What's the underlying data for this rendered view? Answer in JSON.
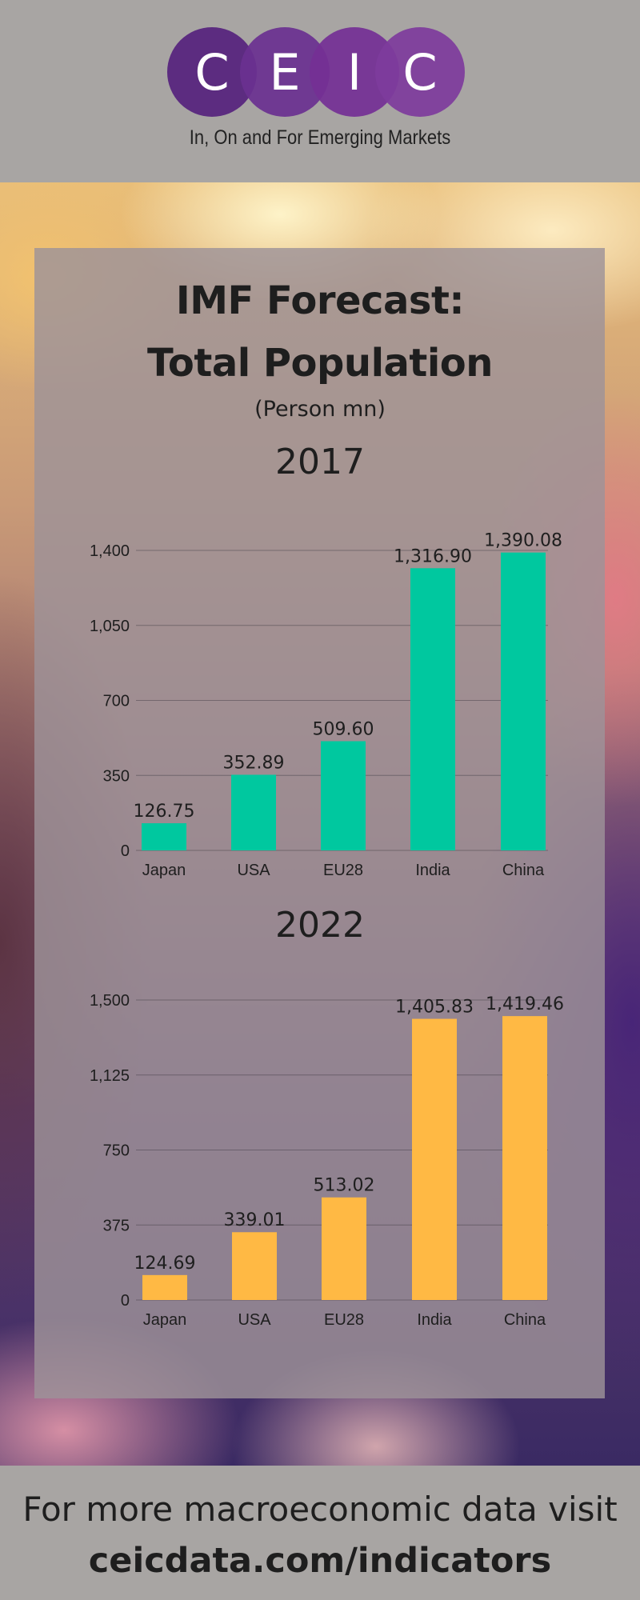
{
  "header": {
    "logo_letters": [
      "C",
      "E",
      "I",
      "C"
    ],
    "logo_colors": [
      "#5c2c80",
      "#6a3090",
      "#742f95",
      "#7e3b9c"
    ],
    "tagline": "In, On and For Emerging Markets"
  },
  "title_line1": "IMF Forecast:",
  "title_line2": "Total Population",
  "subtitle": "(Person mn)",
  "chart_data": [
    {
      "type": "bar",
      "title": "2017",
      "categories": [
        "Japan",
        "USA",
        "EU28",
        "India",
        "China"
      ],
      "values": [
        126.75,
        352.89,
        509.6,
        1316.9,
        1390.08
      ],
      "value_labels": [
        "126.75",
        "352.89",
        "509.60",
        "1,316.90",
        "1,390.08"
      ],
      "ylim": [
        0,
        1400
      ],
      "yticks": [
        0,
        350,
        700,
        1050,
        1400
      ],
      "ytick_labels": [
        "0",
        "350",
        "700",
        "1,050",
        "1,400"
      ],
      "color": "#00c89f",
      "grid": true
    },
    {
      "type": "bar",
      "title": "2022",
      "categories": [
        "Japan",
        "USA",
        "EU28",
        "India",
        "China"
      ],
      "values": [
        124.69,
        339.01,
        513.02,
        1405.83,
        1419.46
      ],
      "value_labels": [
        "124.69",
        "339.01",
        "513.02",
        "1,405.83",
        "1,419.46"
      ],
      "ylim": [
        0,
        1500
      ],
      "yticks": [
        0,
        375,
        750,
        1125,
        1500
      ],
      "ytick_labels": [
        "0",
        "375",
        "750",
        "1,125",
        "1,500"
      ],
      "color": "#ffb944",
      "grid": true
    }
  ],
  "footer": {
    "line1": "For more macroeconomic data visit",
    "line2": "ceicdata.com/indicators"
  }
}
